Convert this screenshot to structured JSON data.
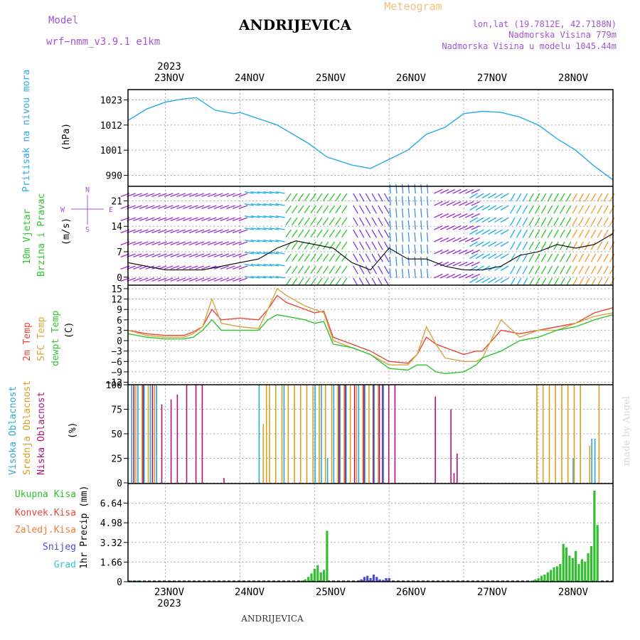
{
  "header": {
    "model_label": "Model",
    "model_value": "wrf−nmm_v3.9.1  e1km",
    "location": "ANDRIJEVICA",
    "meteogram_label": "Meteogram",
    "lonlat": "lon,lat (19.7812E, 42.7188N)",
    "elevation": "Nadmorska Visina 779m",
    "model_elevation": "Nadmorska Visina u modelu 1045.44m",
    "footer_location": "ANDRIJEVICA",
    "watermark": "made by Angel",
    "year_top": "2023",
    "year_bottom": "2023"
  },
  "colors": {
    "pressure": "#29a9e9",
    "temp2m": "#e8463a",
    "sfc": "#d6a642",
    "dewpt": "#2fc42f",
    "high_cloud": "#2aa7d6",
    "mid_cloud": "#d9a020",
    "low_cloud": "#b0127a",
    "total_precip": "#2fbf2f",
    "conv_precip": "#e8463a",
    "frozen_precip": "#f07e30",
    "snow": "#4b4bd6",
    "graupel": "#35c6c6",
    "model_text": "#a157d2",
    "meteogram_text": "#f2c17c"
  },
  "dates": [
    "23NOV",
    "24NOV",
    "25NOV",
    "26NOV",
    "27NOV",
    "28NOV"
  ],
  "panels": {
    "pressure": {
      "title": "Pritisak na nivou mora",
      "unit": "(hPa)",
      "ticks": [
        "1023",
        "1012",
        "1001",
        "990"
      ]
    },
    "wind": {
      "title1": "10m Vjetar",
      "title2": "Brzina i Pravac",
      "unit": "(m/s)",
      "ticks": [
        "21",
        "14",
        "7",
        "0"
      ],
      "compass": [
        "N",
        "W",
        "E",
        "S"
      ]
    },
    "temp": {
      "label1": "2m Temp",
      "label2": "SFC Temp",
      "label3": "dewpt Temp",
      "unit": "(C)",
      "ticks": [
        "15",
        "12",
        "9",
        "6",
        "3",
        "0",
        "−3",
        "−6",
        "−9",
        "−12"
      ]
    },
    "cloud": {
      "label1": "Visoka Oblacnost",
      "label2": "Srednja Oblacnost",
      "label3": "Niska Oblacnost",
      "unit": "(%)",
      "ticks": [
        "100",
        "75",
        "50",
        "25",
        "0"
      ]
    },
    "precip": {
      "unit": "1hr Precip (mm)",
      "ticks": [
        "6.64",
        "4.98",
        "3.32",
        "1.66",
        "0"
      ],
      "legend": [
        "Ukupna Kisa",
        "Konvek.Kisa",
        "Zaledj.Kisa",
        "Snijeg",
        "Grad"
      ]
    }
  },
  "chart_data": [
    {
      "type": "line",
      "name": "pressure",
      "x_range_hours": [
        -12,
        144
      ],
      "ylim": [
        985.5,
        1027.5
      ],
      "series": [
        {
          "name": "Pritisak na nivou mora",
          "x": [
            -12,
            -6,
            0,
            6,
            10,
            16,
            22,
            24,
            36,
            46,
            52,
            60,
            66,
            72,
            78,
            84,
            90,
            96,
            102,
            108,
            114,
            120,
            126,
            132,
            138,
            144
          ],
          "values": [
            1014,
            1019,
            1022,
            1023.5,
            1024,
            1018.5,
            1017,
            1017.5,
            1012,
            1004,
            998,
            994.5,
            993,
            997,
            1001,
            1008,
            1011,
            1017,
            1018,
            1017.5,
            1015.5,
            1012,
            1006,
            1001,
            994,
            988
          ]
        }
      ]
    },
    {
      "type": "line",
      "name": "wind speed",
      "ylim": [
        -2,
        25
      ],
      "series": [
        {
          "name": "10m wind",
          "x": [
            -12,
            -6,
            0,
            6,
            12,
            18,
            24,
            30,
            36,
            42,
            48,
            54,
            60,
            66,
            72,
            78,
            84,
            90,
            96,
            102,
            108,
            114,
            120,
            126,
            132,
            138,
            144
          ],
          "values": [
            4,
            3,
            2,
            2,
            2,
            3,
            4,
            5,
            8,
            10,
            9,
            8,
            4,
            2,
            8,
            5,
            5,
            3,
            2,
            2,
            3,
            6,
            7,
            9,
            8,
            9,
            12
          ]
        }
      ]
    },
    {
      "type": "line",
      "name": "temperature",
      "ylim": [
        -12.5,
        16
      ],
      "series": [
        {
          "name": "2m Temp",
          "x": [
            -12,
            -6,
            0,
            6,
            9,
            12,
            15,
            18,
            24,
            30,
            33,
            36,
            39,
            45,
            48,
            51,
            54,
            60,
            66,
            72,
            78,
            81,
            84,
            87,
            90,
            96,
            100,
            102,
            108,
            114,
            120,
            126,
            132,
            138,
            144
          ],
          "values": [
            3,
            2,
            1.5,
            1.5,
            2.5,
            4,
            9,
            6,
            6.5,
            6,
            9,
            13,
            11,
            9,
            8,
            8.5,
            1,
            -1,
            -3,
            -6,
            -6.5,
            -4,
            1,
            -1,
            -2,
            -4,
            -3,
            -3,
            3,
            2,
            3,
            4,
            5,
            8,
            9.5
          ]
        },
        {
          "name": "SFC Temp",
          "x": [
            -12,
            -6,
            0,
            6,
            9,
            12,
            15,
            18,
            24,
            30,
            33,
            36,
            39,
            45,
            48,
            51,
            54,
            60,
            66,
            72,
            78,
            81,
            84,
            87,
            90,
            96,
            100,
            102,
            108,
            114,
            120,
            126,
            132,
            138,
            144
          ],
          "values": [
            3,
            1.5,
            1,
            1,
            2,
            4,
            12,
            5,
            4,
            3.5,
            9,
            15,
            13,
            10,
            9,
            8,
            0,
            -2,
            -4,
            -7,
            -7,
            -4,
            4,
            -1,
            -5,
            -6,
            -6,
            -5,
            6,
            1,
            3,
            3,
            5,
            7,
            8
          ]
        },
        {
          "name": "dewpt Temp",
          "x": [
            -12,
            -6,
            0,
            6,
            9,
            12,
            15,
            18,
            24,
            30,
            33,
            36,
            39,
            45,
            48,
            51,
            54,
            60,
            66,
            72,
            78,
            81,
            84,
            87,
            90,
            96,
            100,
            102,
            108,
            114,
            120,
            126,
            132,
            138,
            144
          ],
          "values": [
            2,
            1,
            0.5,
            0.5,
            1,
            3,
            6,
            3,
            3,
            3,
            6,
            7.5,
            7,
            6,
            5,
            5.5,
            -1,
            -2,
            -4,
            -8,
            -8.5,
            -7,
            -7,
            -9,
            -9.5,
            -9,
            -7,
            -5,
            -3,
            0,
            1,
            3,
            4,
            6,
            7.5
          ]
        }
      ]
    },
    {
      "type": "bar",
      "name": "cloud cover",
      "ylim": [
        0,
        100
      ],
      "series": [
        {
          "name": "Visoka Oblacnost",
          "x": [
            -11,
            -9,
            -7,
            -5,
            -3,
            30,
            38,
            48,
            50,
            52,
            54,
            56,
            58,
            62,
            64,
            67,
            70,
            131,
            137,
            138
          ],
          "values": [
            100,
            100,
            100,
            100,
            100,
            100,
            100,
            100,
            100,
            25,
            100,
            100,
            100,
            100,
            100,
            100,
            100,
            25,
            45,
            45
          ]
        },
        {
          "name": "Srednja Oblacnost",
          "x": [
            -10,
            -8,
            -6,
            -4,
            31,
            32,
            33,
            35,
            37,
            39,
            41,
            43,
            45,
            47,
            49,
            51,
            53,
            55,
            57,
            59,
            61,
            63,
            65,
            68,
            119,
            121,
            123,
            125,
            127,
            129,
            131,
            133,
            136,
            139
          ],
          "values": [
            100,
            100,
            100,
            100,
            60,
            100,
            100,
            100,
            100,
            100,
            100,
            100,
            100,
            100,
            100,
            100,
            100,
            100,
            100,
            100,
            100,
            100,
            100,
            100,
            100,
            100,
            100,
            100,
            100,
            100,
            100,
            100,
            38,
            100
          ]
        },
        {
          "name": "Niska Oblacnost",
          "x": [
            -11,
            -8,
            -5,
            -2,
            1,
            3,
            6,
            9,
            11,
            18,
            55,
            57,
            60,
            63,
            66,
            68,
            69,
            71,
            73,
            86,
            91,
            92,
            93
          ],
          "values": [
            100,
            100,
            100,
            80,
            85,
            90,
            100,
            100,
            100,
            5,
            100,
            100,
            100,
            100,
            100,
            100,
            100,
            100,
            100,
            88,
            75,
            10,
            30
          ]
        }
      ]
    },
    {
      "type": "bar",
      "name": "precipitation",
      "ylim": [
        0,
        8.3
      ],
      "series": [
        {
          "name": "Ukupna Kisa",
          "x": [
            -11,
            -9,
            -7,
            0,
            2,
            44,
            45,
            46,
            47,
            48,
            49,
            50,
            51,
            52,
            118,
            119,
            120,
            121,
            122,
            123,
            124,
            125,
            126,
            127,
            128,
            129,
            130,
            131,
            132,
            133,
            134,
            135,
            136,
            137,
            138,
            139,
            140,
            141,
            142,
            143,
            144
          ],
          "values": [
            0.1,
            0.1,
            0.05,
            0.05,
            0.05,
            0.1,
            0.2,
            0.4,
            0.7,
            1.1,
            1.4,
            0.8,
            1.0,
            4.3,
            0.1,
            0.2,
            0.3,
            0.5,
            0.6,
            0.8,
            1.0,
            1.2,
            1.3,
            1.5,
            3.2,
            2.9,
            2.2,
            2.0,
            2.6,
            1.5,
            1.9,
            1.7,
            2.4,
            3.0,
            7.7,
            4.8,
            0,
            0,
            0,
            0,
            0
          ]
        },
        {
          "name": "Snijeg",
          "x": [
            63,
            64,
            65,
            66,
            67,
            68,
            69,
            70,
            71,
            72
          ],
          "values": [
            0.2,
            0.4,
            0.5,
            0.3,
            0.6,
            0.4,
            0.2,
            0.15,
            0.3,
            0.3
          ]
        }
      ]
    }
  ]
}
